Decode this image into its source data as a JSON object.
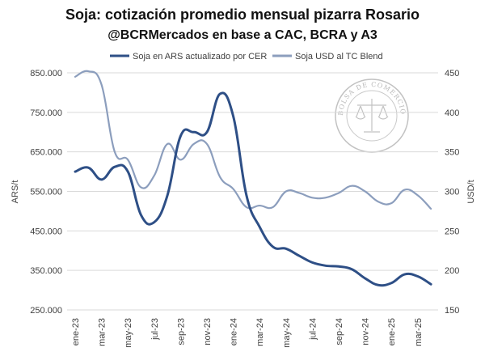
{
  "chart_data": {
    "type": "line",
    "title": "Soja: cotización promedio mensual pizarra Rosario",
    "subtitle": "@BCRMercados en base a CAC, BCRA y A3",
    "ylabel": "ARS/t",
    "y2label": "USD/t",
    "ylim": [
      250000,
      850000
    ],
    "y2lim": [
      150,
      450
    ],
    "yticks": [
      "250.000",
      "350.000",
      "450.000",
      "550.000",
      "650.000",
      "750.000",
      "850.000"
    ],
    "y2ticks": [
      "150",
      "200",
      "250",
      "300",
      "350",
      "400",
      "450"
    ],
    "categories": [
      "ene-23",
      "feb-23",
      "mar-23",
      "abr-23",
      "may-23",
      "jun-23",
      "jul-23",
      "ago-23",
      "sep-23",
      "oct-23",
      "nov-23",
      "dic-23",
      "ene-24",
      "feb-24",
      "mar-24",
      "abr-24",
      "may-24",
      "jun-24",
      "jul-24",
      "ago-24",
      "sep-24",
      "oct-24",
      "nov-24",
      "dic-24",
      "ene-25",
      "feb-25",
      "mar-25",
      "abr-25"
    ],
    "xtick_labels": [
      "ene-23",
      "mar-23",
      "may-23",
      "jul-23",
      "sep-23",
      "nov-23",
      "ene-24",
      "mar-24",
      "may-24",
      "jul-24",
      "sep-24",
      "nov-24",
      "ene-25",
      "mar-25"
    ],
    "grid": true,
    "legend_position": "top",
    "series": [
      {
        "name": "Soja en ARS actualizado por CER",
        "axis": "left",
        "color": "#2e4f86",
        "values": [
          600000,
          610000,
          580000,
          612000,
          600000,
          490000,
          472000,
          540000,
          690000,
          700000,
          700000,
          797000,
          740000,
          540000,
          460000,
          410000,
          405000,
          387000,
          370000,
          362000,
          360000,
          353000,
          330000,
          313000,
          318000,
          340000,
          335000,
          315000
        ]
      },
      {
        "name": "Soja USD al TC Blend",
        "axis": "right",
        "color": "#8c9ebd",
        "values": [
          445,
          452,
          435,
          350,
          340,
          305,
          320,
          360,
          340,
          360,
          360,
          318,
          303,
          280,
          282,
          280,
          300,
          298,
          292,
          292,
          298,
          307,
          300,
          287,
          285,
          302,
          295,
          278
        ]
      }
    ]
  },
  "watermark": {
    "text": "BOLSA DE COMERCIO DE ROSARIO"
  }
}
